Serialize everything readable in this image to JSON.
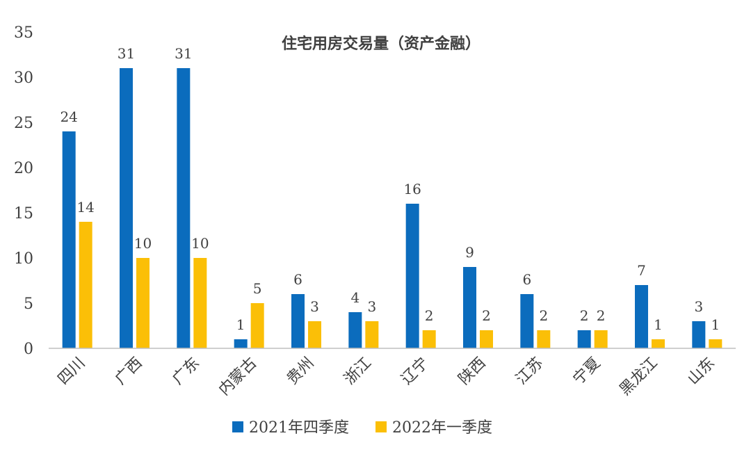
{
  "chart_data": {
    "type": "bar",
    "title": "住宅用房交易量（资产金融）",
    "categories": [
      "四川",
      "广西",
      "广东",
      "内蒙古",
      "贵州",
      "浙江",
      "辽宁",
      "陕西",
      "江苏",
      "宁夏",
      "黑龙江",
      "山东"
    ],
    "series": [
      {
        "name": "2021年四季度",
        "color": "#0b6cbd",
        "values": [
          24,
          31,
          31,
          1,
          6,
          4,
          16,
          9,
          6,
          2,
          7,
          3
        ]
      },
      {
        "name": "2022年一季度",
        "color": "#fbbf07",
        "values": [
          14,
          10,
          10,
          5,
          3,
          3,
          2,
          2,
          2,
          2,
          1,
          1
        ]
      }
    ],
    "ylim": [
      0,
      35
    ],
    "yticks": [
      0,
      5,
      10,
      15,
      20,
      25,
      30,
      35
    ],
    "grid": false,
    "legend_position": "bottom"
  }
}
